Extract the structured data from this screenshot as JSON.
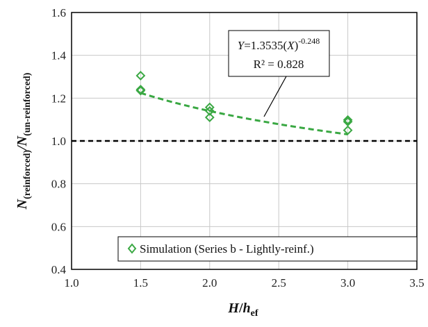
{
  "chart_data": {
    "type": "scatter",
    "xlim": [
      1.0,
      3.5
    ],
    "ylim": [
      0.4,
      1.6
    ],
    "x_ticks": [
      "1.0",
      "1.5",
      "2.0",
      "2.5",
      "3.0",
      "3.5"
    ],
    "y_ticks": [
      "0.4",
      "0.6",
      "0.8",
      "1.0",
      "1.2",
      "1.4",
      "1.6"
    ],
    "grid": true,
    "xlabel": {
      "main": "H",
      "slash": "/",
      "second": "h",
      "second_sub": "ef"
    },
    "ylabel": {
      "n1": "N",
      "n1_sub": "(reinforced)",
      "slash": "/",
      "n2": "N",
      "n2_sub": "(un-reinforced)"
    },
    "series": [
      {
        "name": "Simulation (Series b - Lightly-reinf.)",
        "marker": "diamond",
        "color": "#3aa843",
        "points": [
          {
            "x": 1.5,
            "y": 1.305
          },
          {
            "x": 1.5,
            "y": 1.24
          },
          {
            "x": 1.5,
            "y": 1.235
          },
          {
            "x": 2.0,
            "y": 1.157
          },
          {
            "x": 2.0,
            "y": 1.14
          },
          {
            "x": 2.0,
            "y": 1.11
          },
          {
            "x": 3.0,
            "y": 1.098
          },
          {
            "x": 3.0,
            "y": 1.09
          },
          {
            "x": 3.0,
            "y": 1.05
          }
        ]
      }
    ],
    "trendline": {
      "color": "#3aa843",
      "coefficient": 1.3535,
      "exponent": -0.248,
      "x_range": [
        1.5,
        3.0
      ]
    },
    "reference_line": {
      "y": 1.0,
      "color": "#000000"
    },
    "annotation": {
      "eq_y": "Y",
      "eq_mid": "=1.3535(",
      "eq_x": "X",
      "eq_close": ")",
      "eq_exp": "-0.248",
      "r2": "R² = 0.828"
    },
    "legend": {
      "position": "bottom-right",
      "label": "Simulation (Series b - Lightly-reinf.)"
    }
  }
}
